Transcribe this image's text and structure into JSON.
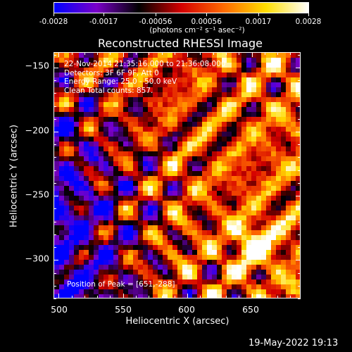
{
  "colorbar": {
    "tick_labels": [
      "-0.0028",
      "-0.0017",
      "-0.00056",
      "0.00056",
      "0.0017",
      "0.0028"
    ],
    "units_label": "(photons cm⁻² s⁻¹ asec⁻²)"
  },
  "plot": {
    "title": "Reconstructed RHESSI Image",
    "x_axis_title": "Heliocentric X (arcsec)",
    "y_axis_title": "Heliocentric Y (arcsec)",
    "x_tick_labels": [
      "500",
      "550",
      "600",
      "650"
    ],
    "y_tick_labels": [
      "−150",
      "−200",
      "−250",
      "−300"
    ],
    "info_lines": [
      "22-Nov-2014 21:35:16.000 to 21:36:08.000",
      "Detectors: 3F 6F 9F, Att 0",
      "Energy Range: 25.0 - 50.0 keV",
      "Clean    Total counts: 857."
    ],
    "peak_label": "Position of Peak = [651,-288]"
  },
  "footer": {
    "timestamp": "19-May-2022 19:13"
  },
  "chart_data": {
    "type": "heatmap",
    "title": "Reconstructed RHESSI Image",
    "xlabel": "Heliocentric X (arcsec)",
    "ylabel": "Heliocentric Y (arcsec)",
    "xlim": [
      496,
      688
    ],
    "ylim": [
      -330,
      -138
    ],
    "x_ticks": [
      500,
      550,
      600,
      650
    ],
    "y_ticks": [
      -150,
      -200,
      -250,
      -300
    ],
    "colorbar_range": [
      -0.0028,
      0.0028
    ],
    "colorbar_ticks": [
      -0.0028,
      -0.0017,
      -0.00056,
      0.00056,
      0.0017,
      0.0028
    ],
    "colorbar_units": "photons cm^-2 s^-1 asec^-2",
    "peak": [
      651,
      -288
    ],
    "colormap_stops": [
      "#0000ff",
      "#7a00c8",
      "#000000",
      "#d40000",
      "#ff6a00",
      "#ffdd00",
      "#ffffff"
    ]
  }
}
